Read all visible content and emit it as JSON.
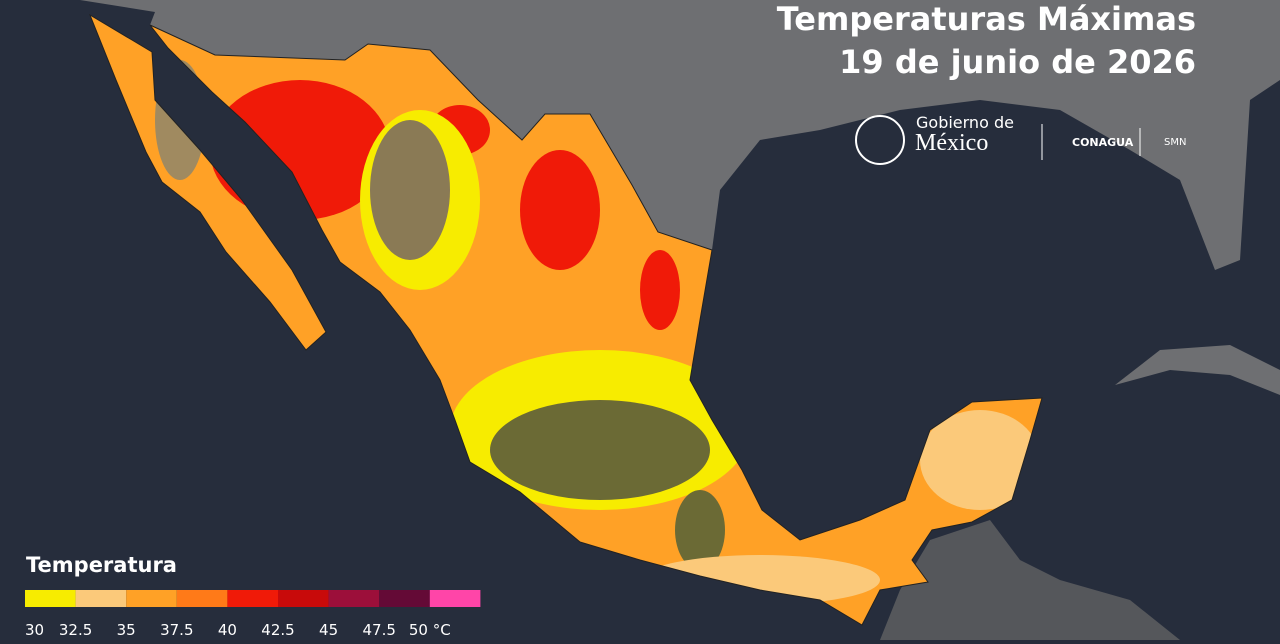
{
  "header": {
    "title": "Temperaturas Máximas",
    "subtitle": "19 de junio de 2026"
  },
  "logos": {
    "gobierno_line1": "Gobierno de",
    "gobierno_line2": "México",
    "conagua": "CONAGUA",
    "smn": "SMN"
  },
  "legend": {
    "title": "Temperatura",
    "colors": [
      "#f7ec00",
      "#fbc97a",
      "#ffa126",
      "#ff7a18",
      "#f01a08",
      "#c80a0a",
      "#9c0f3a",
      "#640a36",
      "#ff45a8"
    ],
    "ticks": [
      30,
      32.5,
      35,
      37.5,
      40,
      42.5,
      45,
      47.5,
      {
        "value": 50,
        "label": "50 °C"
      }
    ]
  }
}
